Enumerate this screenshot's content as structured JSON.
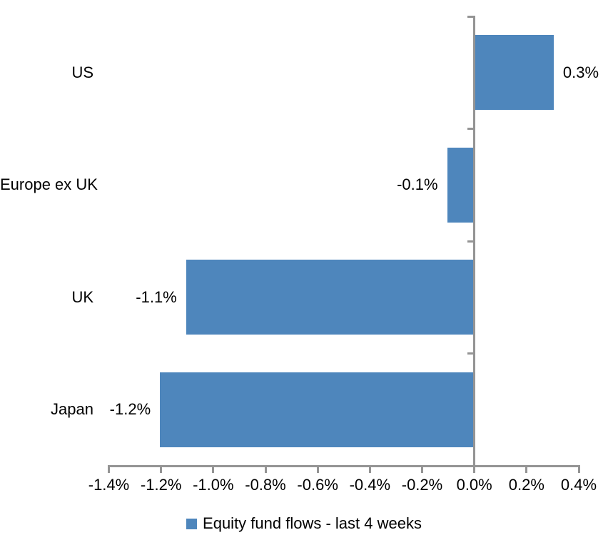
{
  "chart_data": {
    "type": "bar",
    "orientation": "horizontal",
    "title": "",
    "xlabel": "",
    "ylabel": "",
    "categories": [
      "US",
      "Europe ex UK",
      "UK",
      "Japan"
    ],
    "values": [
      0.3,
      -0.1,
      -1.1,
      -1.2
    ],
    "value_labels": [
      "0.3%",
      "-0.1%",
      "-1.1%",
      "-1.2%"
    ],
    "series_name": "Equity fund flows - last 4 weeks",
    "xlim": [
      -1.4,
      0.4
    ],
    "x_tick_values": [
      -1.4,
      -1.2,
      -1.0,
      -0.8,
      -0.6,
      -0.4,
      -0.2,
      0.0,
      0.2,
      0.4
    ],
    "x_tick_labels": [
      "-1.4%",
      "-1.2%",
      "-1.0%",
      "-0.8%",
      "-0.6%",
      "-0.4%",
      "-0.2%",
      "0.0%",
      "0.2%",
      "0.4%"
    ],
    "grid": false,
    "legend_position": "bottom",
    "data_label_position": "outside-end",
    "colors": {
      "bar": "#4E86BC",
      "axis": "#949494",
      "text": "#000000",
      "background": "#FFFFFF"
    }
  },
  "legend": {
    "label": "Equity fund flows - last 4 weeks",
    "marker": "blue-square"
  }
}
